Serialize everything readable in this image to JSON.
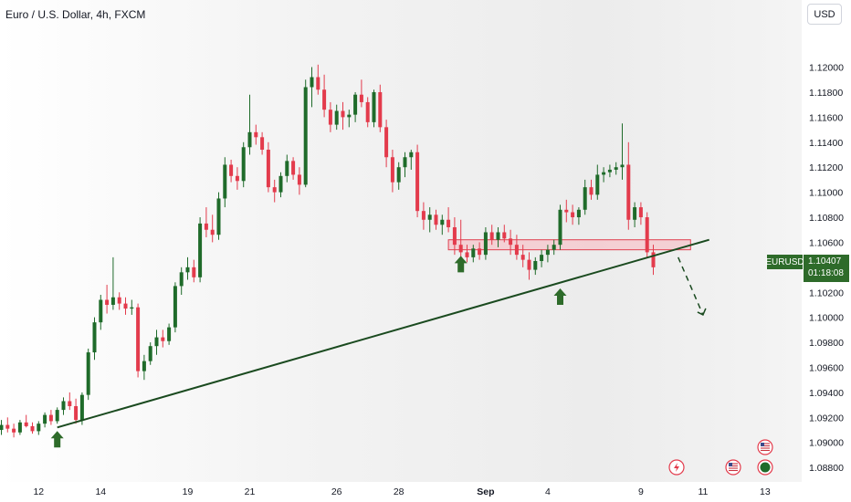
{
  "header": {
    "title": "Euro / U.S. Dollar, 4h, FXCM",
    "currency_button": "USD"
  },
  "price_badge": {
    "symbol": "EURUSD",
    "price": "1.10407",
    "countdown": "01:18:08"
  },
  "colors": {
    "up": "#1f6b2a",
    "down": "#e33b4c",
    "trendline": "#1a4a1f",
    "zone_fill": "#f6c6cb",
    "zone_border": "#e04050",
    "arrow": "#2e6b2a"
  },
  "chart_data": {
    "type": "candlestick",
    "title": "Euro / U.S. Dollar, 4h, FXCM",
    "y_ticks": [
      "1.12000",
      "1.11800",
      "1.11600",
      "1.11400",
      "1.11200",
      "1.11000",
      "1.10800",
      "1.10600",
      "1.10400",
      "1.10200",
      "1.10000",
      "1.09800",
      "1.09600",
      "1.09400",
      "1.09200",
      "1.09000",
      "1.08800"
    ],
    "ylim": [
      1.0875,
      1.1215
    ],
    "x_ticks": [
      {
        "label": "12",
        "bar": 6
      },
      {
        "label": "14",
        "bar": 16
      },
      {
        "label": "19",
        "bar": 30
      },
      {
        "label": "21",
        "bar": 40
      },
      {
        "label": "26",
        "bar": 54
      },
      {
        "label": "28",
        "bar": 64
      },
      {
        "label": "Sep",
        "bar": 78,
        "bold": true
      },
      {
        "label": "4",
        "bar": 88
      },
      {
        "label": "9",
        "bar": 103
      },
      {
        "label": "11",
        "bar": 113
      },
      {
        "label": "13",
        "bar": 123
      }
    ],
    "candles": [
      [
        1.091,
        1.0918,
        1.0906,
        1.0914
      ],
      [
        1.0914,
        1.092,
        1.0908,
        1.0911
      ],
      [
        1.0911,
        1.0915,
        1.0904,
        1.0908
      ],
      [
        1.0908,
        1.0918,
        1.0906,
        1.0916
      ],
      [
        1.0916,
        1.0922,
        1.0912,
        1.0913
      ],
      [
        1.0913,
        1.0916,
        1.0907,
        1.0909
      ],
      [
        1.0909,
        1.0917,
        1.0906,
        1.0915
      ],
      [
        1.0915,
        1.0924,
        1.0912,
        1.0922
      ],
      [
        1.0922,
        1.0926,
        1.0914,
        1.0917
      ],
      [
        1.0917,
        1.0928,
        1.0915,
        1.0926
      ],
      [
        1.0926,
        1.0936,
        1.0922,
        1.0933
      ],
      [
        1.0933,
        1.094,
        1.0926,
        1.0929
      ],
      [
        1.0929,
        1.0935,
        1.0915,
        1.0918
      ],
      [
        1.0918,
        1.094,
        1.0914,
        1.0938
      ],
      [
        1.0938,
        1.0975,
        1.0934,
        1.0972
      ],
      [
        1.0972,
        1.1,
        1.0966,
        1.0996
      ],
      [
        1.0996,
        1.1018,
        1.099,
        1.1014
      ],
      [
        1.1014,
        1.1026,
        1.1003,
        1.101
      ],
      [
        1.101,
        1.1048,
        1.1006,
        1.1016
      ],
      [
        1.1016,
        1.102,
        1.1006,
        1.1011
      ],
      [
        1.1011,
        1.1016,
        1.1002,
        1.1007
      ],
      [
        1.1007,
        1.1014,
        1.1002,
        1.1008
      ],
      [
        1.1008,
        1.1011,
        1.0952,
        1.0957
      ],
      [
        1.0957,
        1.097,
        1.095,
        1.0965
      ],
      [
        1.0965,
        1.098,
        1.0962,
        1.0977
      ],
      [
        1.0977,
        1.099,
        1.097,
        1.0984
      ],
      [
        1.0984,
        1.099,
        1.0976,
        1.0981
      ],
      [
        1.0981,
        1.0995,
        1.0978,
        1.0992
      ],
      [
        1.0992,
        1.1028,
        1.0988,
        1.1025
      ],
      [
        1.1025,
        1.104,
        1.1018,
        1.1036
      ],
      [
        1.1036,
        1.1048,
        1.103,
        1.104
      ],
      [
        1.104,
        1.1046,
        1.1028,
        1.1032
      ],
      [
        1.1032,
        1.108,
        1.1028,
        1.1075
      ],
      [
        1.1075,
        1.1088,
        1.1064,
        1.107
      ],
      [
        1.107,
        1.1082,
        1.106,
        1.1066
      ],
      [
        1.1066,
        1.11,
        1.1062,
        1.1095
      ],
      [
        1.1095,
        1.1128,
        1.1088,
        1.1122
      ],
      [
        1.1122,
        1.1126,
        1.1108,
        1.1113
      ],
      [
        1.1113,
        1.112,
        1.1102,
        1.1109
      ],
      [
        1.1109,
        1.114,
        1.1104,
        1.1136
      ],
      [
        1.1136,
        1.1178,
        1.113,
        1.1148
      ],
      [
        1.1148,
        1.1154,
        1.1138,
        1.1144
      ],
      [
        1.1144,
        1.1148,
        1.113,
        1.1134
      ],
      [
        1.1134,
        1.114,
        1.11,
        1.1104
      ],
      [
        1.1104,
        1.111,
        1.1092,
        1.11
      ],
      [
        1.11,
        1.1116,
        1.1096,
        1.1113
      ],
      [
        1.1113,
        1.113,
        1.1108,
        1.1125
      ],
      [
        1.1125,
        1.1128,
        1.111,
        1.1114
      ],
      [
        1.1114,
        1.112,
        1.1098,
        1.1106
      ],
      [
        1.1106,
        1.119,
        1.1104,
        1.1184
      ],
      [
        1.1184,
        1.12,
        1.1168,
        1.1192
      ],
      [
        1.1192,
        1.1202,
        1.1178,
        1.1182
      ],
      [
        1.1182,
        1.1194,
        1.116,
        1.1166
      ],
      [
        1.1166,
        1.1172,
        1.1148,
        1.1154
      ],
      [
        1.1154,
        1.117,
        1.115,
        1.1165
      ],
      [
        1.1165,
        1.1172,
        1.115,
        1.116
      ],
      [
        1.116,
        1.1166,
        1.1152,
        1.1162
      ],
      [
        1.1162,
        1.118,
        1.1156,
        1.1178
      ],
      [
        1.1178,
        1.119,
        1.1168,
        1.1172
      ],
      [
        1.1172,
        1.1176,
        1.1152,
        1.1156
      ],
      [
        1.1156,
        1.1182,
        1.1152,
        1.118
      ],
      [
        1.118,
        1.1186,
        1.1148,
        1.1152
      ],
      [
        1.1152,
        1.1158,
        1.112,
        1.1128
      ],
      [
        1.1128,
        1.1134,
        1.11,
        1.1108
      ],
      [
        1.1108,
        1.1124,
        1.1102,
        1.112
      ],
      [
        1.112,
        1.1132,
        1.1112,
        1.1128
      ],
      [
        1.1128,
        1.1134,
        1.1118,
        1.1132
      ],
      [
        1.1132,
        1.1138,
        1.108,
        1.1085
      ],
      [
        1.1085,
        1.1092,
        1.107,
        1.1078
      ],
      [
        1.1078,
        1.1088,
        1.1068,
        1.1082
      ],
      [
        1.1082,
        1.1086,
        1.107,
        1.1074
      ],
      [
        1.1074,
        1.1082,
        1.1066,
        1.1078
      ],
      [
        1.1078,
        1.1088,
        1.1068,
        1.1072
      ],
      [
        1.1072,
        1.108,
        1.105,
        1.1058
      ],
      [
        1.1058,
        1.1078,
        1.1048,
        1.1052
      ],
      [
        1.1052,
        1.1058,
        1.1044,
        1.1048
      ],
      [
        1.1048,
        1.1058,
        1.1044,
        1.1055
      ],
      [
        1.1055,
        1.106,
        1.1046,
        1.105
      ],
      [
        1.105,
        1.1072,
        1.1046,
        1.1068
      ],
      [
        1.1068,
        1.1074,
        1.1058,
        1.1062
      ],
      [
        1.1062,
        1.1072,
        1.1056,
        1.1068
      ],
      [
        1.1068,
        1.1074,
        1.106,
        1.1063
      ],
      [
        1.1063,
        1.107,
        1.105,
        1.1058
      ],
      [
        1.1058,
        1.1066,
        1.1046,
        1.105
      ],
      [
        1.105,
        1.1058,
        1.104,
        1.1046
      ],
      [
        1.1046,
        1.1052,
        1.103,
        1.1038
      ],
      [
        1.1038,
        1.1048,
        1.1034,
        1.1045
      ],
      [
        1.1045,
        1.1054,
        1.104,
        1.105
      ],
      [
        1.105,
        1.1058,
        1.1044,
        1.1054
      ],
      [
        1.1054,
        1.1062,
        1.105,
        1.1058
      ],
      [
        1.1058,
        1.109,
        1.1054,
        1.1086
      ],
      [
        1.1086,
        1.1094,
        1.1076,
        1.1084
      ],
      [
        1.1084,
        1.109,
        1.1074,
        1.108
      ],
      [
        1.108,
        1.1088,
        1.1074,
        1.1086
      ],
      [
        1.1086,
        1.111,
        1.1082,
        1.1104
      ],
      [
        1.1104,
        1.111,
        1.1094,
        1.1098
      ],
      [
        1.1098,
        1.1122,
        1.1094,
        1.1114
      ],
      [
        1.1114,
        1.112,
        1.1108,
        1.1116
      ],
      [
        1.1116,
        1.1122,
        1.1112,
        1.1118
      ],
      [
        1.1118,
        1.1124,
        1.1114,
        1.112
      ],
      [
        1.112,
        1.1155,
        1.111,
        1.1122
      ],
      [
        1.1122,
        1.114,
        1.107,
        1.1078
      ],
      [
        1.1078,
        1.1092,
        1.1072,
        1.1088
      ],
      [
        1.1088,
        1.1092,
        1.1074,
        1.108
      ],
      [
        1.108,
        1.1084,
        1.1048,
        1.1052
      ],
      [
        1.1052,
        1.1058,
        1.1034,
        1.104
      ]
    ],
    "annotations": {
      "trendline": [
        [
          9,
          1.0912
        ],
        [
          114,
          1.1062
        ]
      ],
      "support_zone": {
        "bar_start": 72,
        "bar_end": 111,
        "y_low": 1.1054,
        "y_high": 1.1062
      },
      "up_arrows": [
        {
          "bar": 9,
          "y": 1.0912
        },
        {
          "bar": 74,
          "y": 1.1052
        },
        {
          "bar": 90,
          "y": 1.1026
        }
      ],
      "projection": [
        [
          109,
          1.1048
        ],
        [
          113,
          1.1002
        ]
      ]
    }
  }
}
